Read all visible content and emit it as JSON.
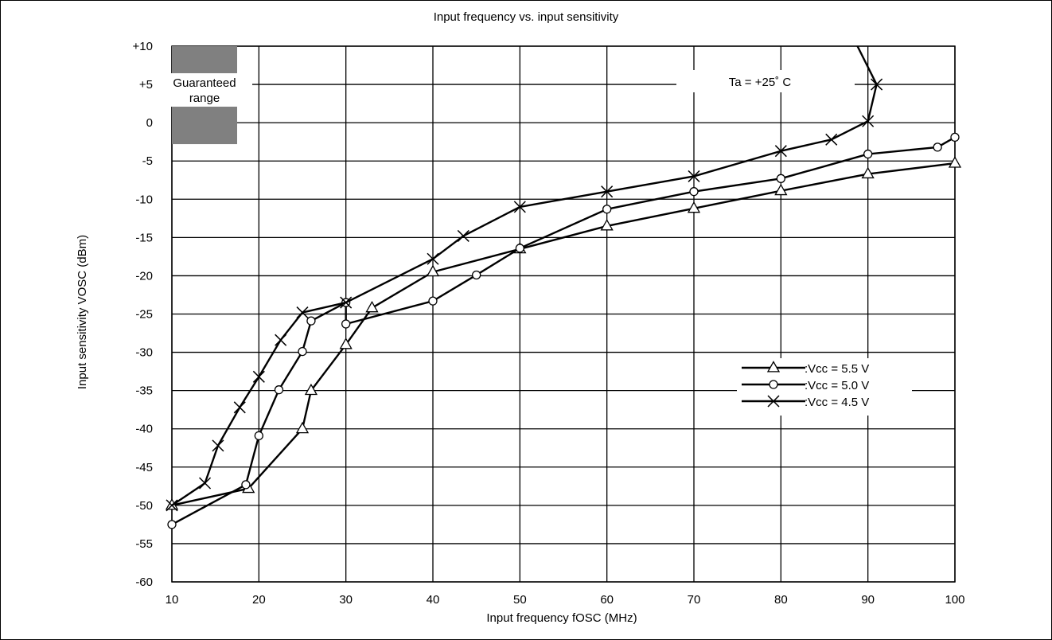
{
  "chart_data": {
    "type": "line",
    "title": "Input frequency vs. input sensitivity",
    "xlabel": "Input frequency fOSC (MHz)",
    "ylabel": "Input sensitivity VOSC (dBm)",
    "xlim": [
      10,
      100
    ],
    "ylim": [
      -60,
      10
    ],
    "x_ticks": [
      10,
      20,
      30,
      40,
      50,
      60,
      70,
      80,
      90,
      100
    ],
    "y_ticks": [
      10,
      5,
      0,
      -5,
      -10,
      -15,
      -20,
      -25,
      -30,
      -35,
      -40,
      -45,
      -50,
      -55,
      -60
    ],
    "x_tick_labels": [
      "10",
      "20",
      "30",
      "40",
      "50",
      "60",
      "70",
      "80",
      "90",
      "100"
    ],
    "y_tick_labels": [
      "+10",
      "+5",
      "0",
      "-5",
      "-10",
      "-15",
      "-20",
      "-25",
      "-30",
      "-35",
      "-40",
      "-45",
      "-50",
      "-55",
      "-60"
    ],
    "grid": true,
    "legend_position": "right",
    "annotations": {
      "guaranteed_range_line1": "Guaranteed",
      "guaranteed_range_line2": "range",
      "guaranteed_range": {
        "x": [
          10,
          17.5
        ],
        "y": [
          -2.8,
          10
        ]
      },
      "temperature": "Ta = +25˚ C"
    },
    "series": [
      {
        "name": ":Vcc = 5.5 V",
        "marker": "triangle",
        "x": [
          10,
          18.8,
          25,
          26,
          30,
          33,
          40,
          50,
          60,
          70,
          80,
          90,
          100
        ],
        "y": [
          -50,
          -47.8,
          -40,
          -35,
          -29,
          -24.2,
          -19.5,
          -16.5,
          -13.5,
          -11.2,
          -8.9,
          -6.7,
          -5.3
        ],
        "legend_text": ":Vcc = 5.5 V"
      },
      {
        "name": ":Vcc = 5.0 V",
        "marker": "circle",
        "x": [
          10,
          18.5,
          20,
          22.3,
          25,
          26,
          30,
          30,
          40,
          45,
          50,
          60,
          70,
          80,
          90,
          98,
          100
        ],
        "y": [
          -52.5,
          -47.3,
          -40.9,
          -34.9,
          -29.9,
          -25.9,
          -23.5,
          -26.3,
          -23.3,
          -19.9,
          -16.4,
          -11.3,
          -9,
          -7.3,
          -4.1,
          -3.2,
          -1.9
        ],
        "legend_text": ":Vcc = 5.0 V"
      },
      {
        "name": ":Vcc = 4.5 V",
        "marker": "x",
        "x": [
          10,
          13.8,
          15.3,
          17.8,
          20,
          22.5,
          25,
          30,
          40,
          43.5,
          50,
          60,
          70,
          80,
          85.8,
          90,
          91
        ],
        "y": [
          -50,
          -47.1,
          -42.2,
          -37.2,
          -33.2,
          -28.4,
          -24.8,
          -23.5,
          -17.8,
          -14.8,
          -11,
          -9,
          -7,
          -3.7,
          -2.2,
          0.2,
          5
        ],
        "extension": {
          "x": [
            91,
            88.8
          ],
          "y": [
            5,
            10
          ]
        },
        "legend_text": ":Vcc = 4.5 V"
      }
    ]
  }
}
